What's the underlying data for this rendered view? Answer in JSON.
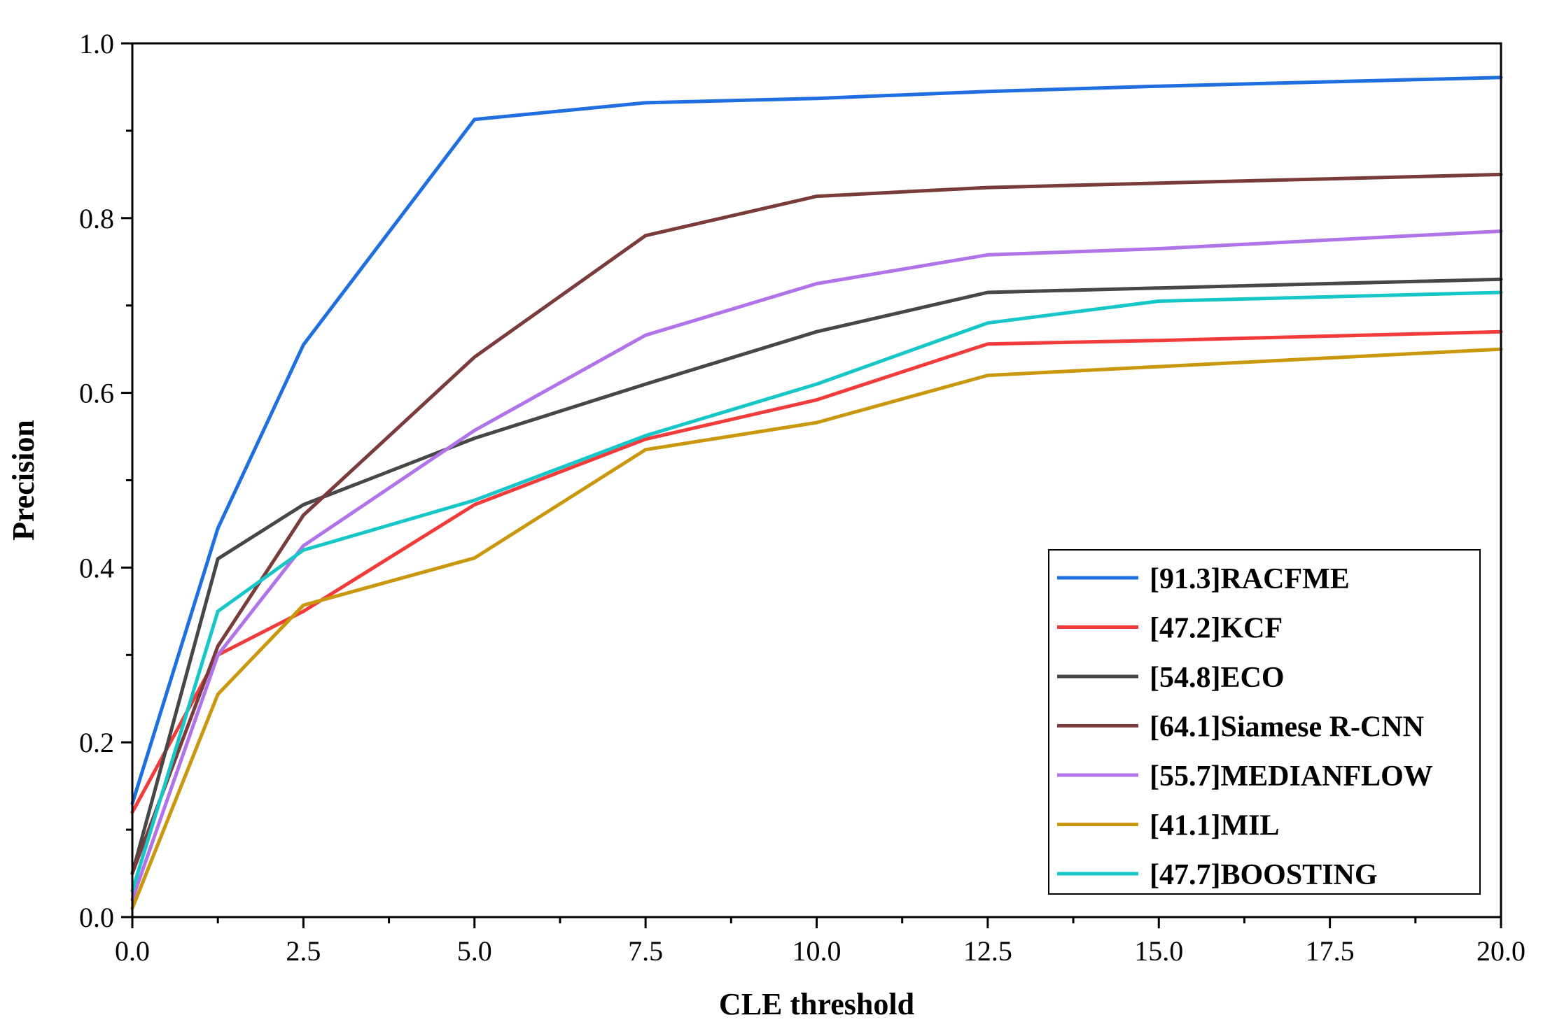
{
  "chart_data": {
    "type": "line",
    "title": "",
    "xlabel": "CLE threshold",
    "ylabel": "Precision",
    "xlim": [
      0,
      20
    ],
    "ylim": [
      0,
      1.0
    ],
    "xticks": [
      "0.0",
      "2.5",
      "5.0",
      "7.5",
      "10.0",
      "12.5",
      "15.0",
      "17.5",
      "20.0"
    ],
    "yticks": [
      "0.0",
      "0.2",
      "0.4",
      "0.6",
      "0.8",
      "1.0"
    ],
    "grid": false,
    "legend_position": "bottom-right",
    "series": [
      {
        "name": "[91.3]RACFME",
        "color": "#1f6fe0",
        "points": [
          [
            0,
            0.13
          ],
          [
            1.25,
            0.445
          ],
          [
            2.5,
            0.655
          ],
          [
            5,
            0.913
          ],
          [
            7.5,
            0.932
          ],
          [
            10,
            0.937
          ],
          [
            12.5,
            0.945
          ],
          [
            15,
            0.951
          ],
          [
            20,
            0.961
          ]
        ]
      },
      {
        "name": "[47.2]KCF",
        "color": "#f23c3c",
        "points": [
          [
            0,
            0.12
          ],
          [
            1.25,
            0.3
          ],
          [
            2.5,
            0.35
          ],
          [
            5,
            0.472
          ],
          [
            7.5,
            0.547
          ],
          [
            10,
            0.592
          ],
          [
            12.5,
            0.656
          ],
          [
            15,
            0.66
          ],
          [
            20,
            0.67
          ]
        ]
      },
      {
        "name": "[54.8]ECO",
        "color": "#474747",
        "points": [
          [
            0,
            0.05
          ],
          [
            1.25,
            0.41
          ],
          [
            2.5,
            0.472
          ],
          [
            5,
            0.548
          ],
          [
            7.5,
            0.61
          ],
          [
            10,
            0.67
          ],
          [
            12.5,
            0.715
          ],
          [
            15,
            0.72
          ],
          [
            20,
            0.73
          ]
        ]
      },
      {
        "name": "[64.1]Siamese R-CNN",
        "color": "#7a3b3b",
        "points": [
          [
            0,
            0.05
          ],
          [
            1.25,
            0.31
          ],
          [
            2.5,
            0.46
          ],
          [
            5,
            0.641
          ],
          [
            7.5,
            0.78
          ],
          [
            10,
            0.825
          ],
          [
            12.5,
            0.835
          ],
          [
            15,
            0.84
          ],
          [
            20,
            0.85
          ]
        ]
      },
      {
        "name": "[55.7]MEDIANFLOW",
        "color": "#b174e8",
        "points": [
          [
            0,
            0.02
          ],
          [
            1.25,
            0.3
          ],
          [
            2.5,
            0.425
          ],
          [
            5,
            0.557
          ],
          [
            7.5,
            0.666
          ],
          [
            10,
            0.725
          ],
          [
            12.5,
            0.758
          ],
          [
            15,
            0.765
          ],
          [
            20,
            0.785
          ]
        ]
      },
      {
        "name": "[41.1]MIL",
        "color": "#c9980e",
        "points": [
          [
            0,
            0.01
          ],
          [
            1.25,
            0.255
          ],
          [
            2.5,
            0.357
          ],
          [
            5,
            0.411
          ],
          [
            7.5,
            0.535
          ],
          [
            10,
            0.566
          ],
          [
            12.5,
            0.62
          ],
          [
            15,
            0.63
          ],
          [
            20,
            0.65
          ]
        ]
      },
      {
        "name": "[47.7]BOOSTING",
        "color": "#17c7c7",
        "points": [
          [
            0,
            0.03
          ],
          [
            1.25,
            0.35
          ],
          [
            2.5,
            0.42
          ],
          [
            5,
            0.477
          ],
          [
            7.5,
            0.551
          ],
          [
            10,
            0.61
          ],
          [
            12.5,
            0.68
          ],
          [
            15,
            0.705
          ],
          [
            20,
            0.715
          ]
        ]
      }
    ]
  }
}
